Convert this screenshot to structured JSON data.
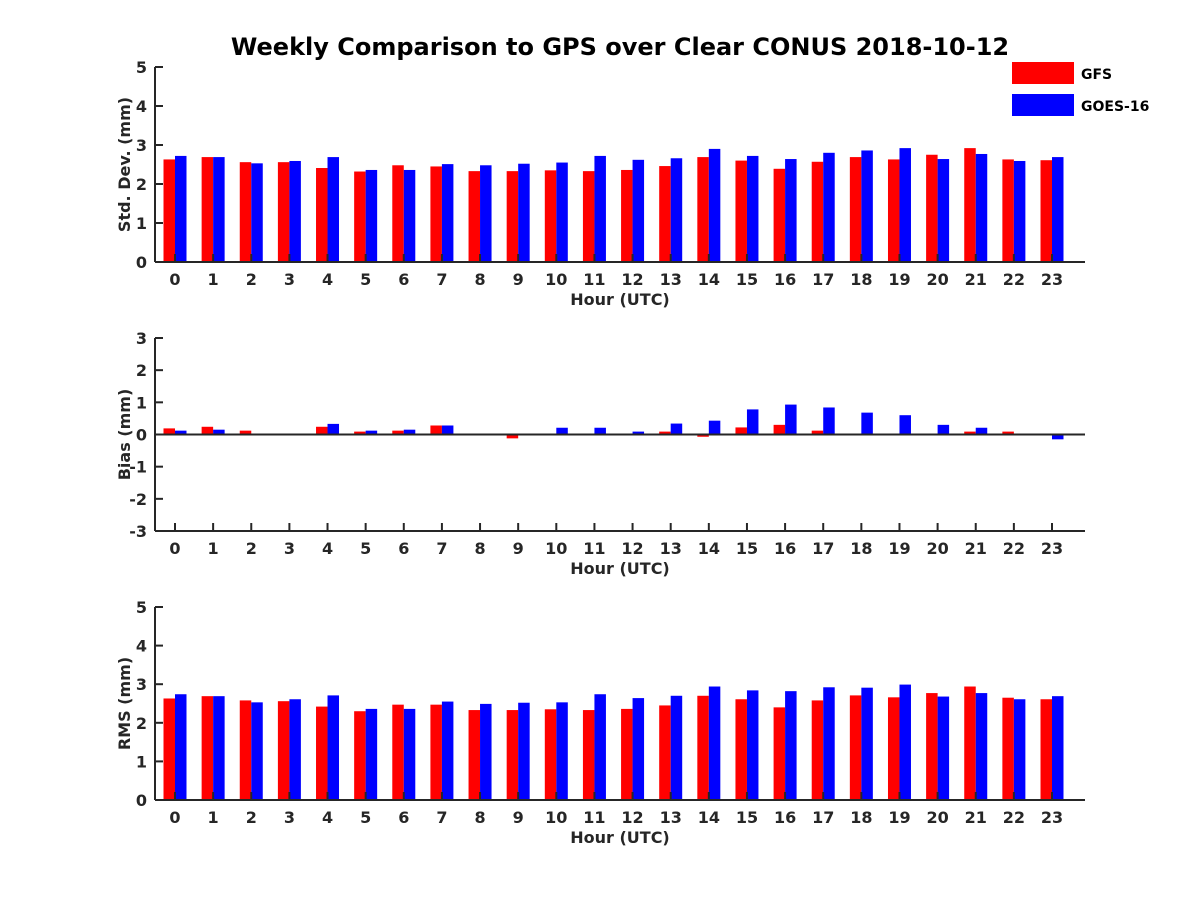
{
  "chart_data": {
    "title": "Weekly Comparison to GPS over Clear CONUS 2018-10-12",
    "legend": {
      "placement": "top-right",
      "entries": [
        {
          "name": "GFS",
          "color": "#ff0000"
        },
        {
          "name": "GOES-16",
          "color": "#0000ff"
        }
      ]
    },
    "panels": [
      {
        "type": "bar",
        "xlabel": "Hour (UTC)",
        "ylabel": "Std. Dev. (mm)",
        "ylim": [
          0,
          5
        ],
        "yticks": [
          0,
          1,
          2,
          3,
          4,
          5
        ],
        "categories": [
          "0",
          "1",
          "2",
          "3",
          "4",
          "5",
          "6",
          "7",
          "8",
          "9",
          "10",
          "11",
          "12",
          "13",
          "14",
          "15",
          "16",
          "17",
          "18",
          "19",
          "20",
          "21",
          "22",
          "23"
        ],
        "series": [
          {
            "name": "GFS",
            "color": "#ff0000",
            "values": [
              2.63,
              2.69,
              2.56,
              2.56,
              2.41,
              2.32,
              2.48,
              2.45,
              2.33,
              2.33,
              2.35,
              2.33,
              2.36,
              2.46,
              2.69,
              2.6,
              2.39,
              2.57,
              2.69,
              2.63,
              2.75,
              2.92,
              2.63,
              2.61
            ]
          },
          {
            "name": "GOES-16",
            "color": "#0000ff",
            "values": [
              2.72,
              2.69,
              2.53,
              2.59,
              2.69,
              2.36,
              2.36,
              2.51,
              2.48,
              2.52,
              2.55,
              2.72,
              2.62,
              2.66,
              2.9,
              2.72,
              2.64,
              2.8,
              2.86,
              2.92,
              2.64,
              2.77,
              2.59,
              2.69
            ]
          }
        ]
      },
      {
        "type": "bar",
        "xlabel": "Hour (UTC)",
        "ylabel": "Bias (mm)",
        "ylim": [
          -3,
          3
        ],
        "yticks": [
          -3,
          -2,
          -1,
          0,
          1,
          2,
          3
        ],
        "categories": [
          "0",
          "1",
          "2",
          "3",
          "4",
          "5",
          "6",
          "7",
          "8",
          "9",
          "10",
          "11",
          "12",
          "13",
          "14",
          "15",
          "16",
          "17",
          "18",
          "19",
          "20",
          "21",
          "22",
          "23"
        ],
        "series": [
          {
            "name": "GFS",
            "color": "#ff0000",
            "values": [
              0.19,
              0.24,
              0.12,
              0.03,
              0.24,
              0.09,
              0.12,
              0.28,
              0.0,
              -0.12,
              0.0,
              -0.03,
              0.0,
              0.09,
              -0.07,
              0.22,
              0.3,
              0.12,
              0.0,
              0.0,
              0.03,
              0.09,
              0.09,
              0.0
            ]
          },
          {
            "name": "GOES-16",
            "color": "#0000ff",
            "values": [
              0.12,
              0.15,
              0.0,
              0.0,
              0.33,
              0.12,
              0.15,
              0.28,
              0.03,
              0.0,
              0.21,
              0.21,
              0.09,
              0.34,
              0.43,
              0.78,
              0.93,
              0.84,
              0.68,
              0.6,
              0.3,
              0.21,
              0.0,
              -0.15
            ]
          }
        ]
      },
      {
        "type": "bar",
        "xlabel": "Hour (UTC)",
        "ylabel": "RMS (mm)",
        "ylim": [
          0,
          5
        ],
        "yticks": [
          0,
          1,
          2,
          3,
          4,
          5
        ],
        "categories": [
          "0",
          "1",
          "2",
          "3",
          "4",
          "5",
          "6",
          "7",
          "8",
          "9",
          "10",
          "11",
          "12",
          "13",
          "14",
          "15",
          "16",
          "17",
          "18",
          "19",
          "20",
          "21",
          "22",
          "23"
        ],
        "series": [
          {
            "name": "GFS",
            "color": "#ff0000",
            "values": [
              2.63,
              2.69,
              2.58,
              2.56,
              2.42,
              2.3,
              2.47,
              2.47,
              2.33,
              2.33,
              2.35,
              2.33,
              2.36,
              2.45,
              2.7,
              2.61,
              2.4,
              2.58,
              2.71,
              2.66,
              2.77,
              2.94,
              2.65,
              2.61
            ]
          },
          {
            "name": "GOES-16",
            "color": "#0000ff",
            "values": [
              2.74,
              2.69,
              2.53,
              2.61,
              2.71,
              2.36,
              2.36,
              2.55,
              2.49,
              2.52,
              2.53,
              2.74,
              2.64,
              2.7,
              2.94,
              2.84,
              2.82,
              2.92,
              2.91,
              2.99,
              2.68,
              2.77,
              2.61,
              2.69
            ]
          }
        ]
      }
    ]
  }
}
